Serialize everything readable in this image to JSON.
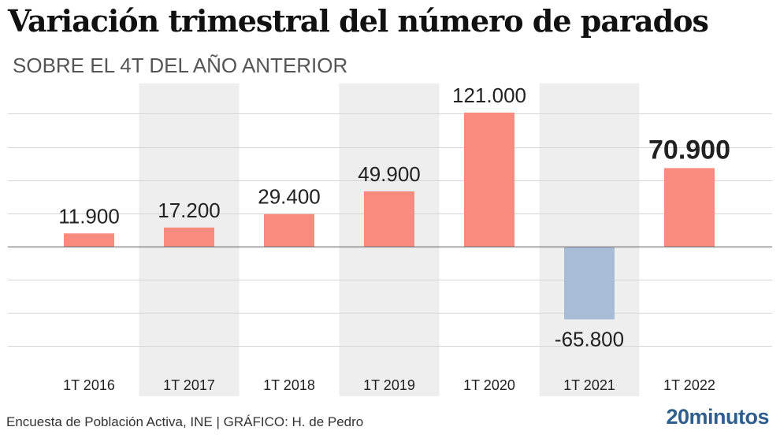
{
  "title": "Variación trimestral del número de parados",
  "subtitle": "SOBRE EL 4T DEL AÑO ANTERIOR",
  "footer": {
    "source": "Encuesta de Población Activa, INE  |  GRÁFICO: H. de Pedro",
    "brand": "20minutos"
  },
  "chart_data": {
    "type": "bar",
    "title": "Variación trimestral del número de parados",
    "subtitle": "SOBRE EL 4T DEL AÑO ANTERIOR",
    "xlabel": "",
    "ylabel": "",
    "categories": [
      "1T 2016",
      "1T 2017",
      "1T 2018",
      "1T 2019",
      "1T 2020",
      "1T 2021",
      "1T 2022"
    ],
    "values": [
      11900,
      17200,
      29400,
      49900,
      121000,
      -65800,
      70900
    ],
    "value_labels": [
      "11.900",
      "17.200",
      "29.400",
      "49.900",
      "121.000",
      "-65.800",
      "70.900"
    ],
    "highlight_index": 6,
    "ylim": [
      -90000,
      120000
    ],
    "grid": true,
    "colors": {
      "positive": "#f88a7e",
      "negative": "#a9bcd6",
      "band": "#eeeeee",
      "grid": "#d4d4d4",
      "zero": "#777777"
    }
  }
}
